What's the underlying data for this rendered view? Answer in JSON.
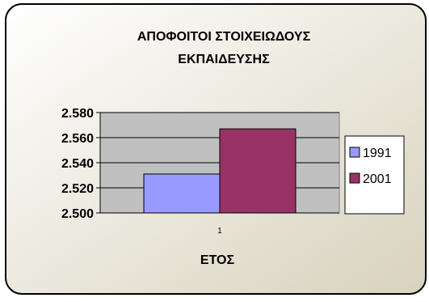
{
  "chart_data": {
    "type": "bar",
    "title_lines": [
      "ΑΠΟΦΟΙΤΟΙ ΣΤΟΙΧΕΙΩΔΟΥΣ",
      "ΕΚΠΑΙΔΕΥΣΗΣ"
    ],
    "xlabel": "ΕΤΟΣ",
    "ylabel": "",
    "categories": [
      "1"
    ],
    "series": [
      {
        "name": "1991",
        "values": [
          2.531
        ],
        "color": "#9999ff"
      },
      {
        "name": "2001",
        "values": [
          2.567
        ],
        "color": "#993366"
      }
    ],
    "ylim": [
      2.5,
      2.58
    ],
    "yticks": [
      2.5,
      2.52,
      2.54,
      2.56,
      2.58
    ],
    "ytick_labels": [
      "2.500",
      "2.520",
      "2.540",
      "2.560",
      "2.580"
    ],
    "grid": true,
    "legend": "right",
    "background": {
      "outer_gradient": [
        "#ffffff",
        "#d8d2bd"
      ],
      "plot_area": "#c0c0c0"
    }
  }
}
